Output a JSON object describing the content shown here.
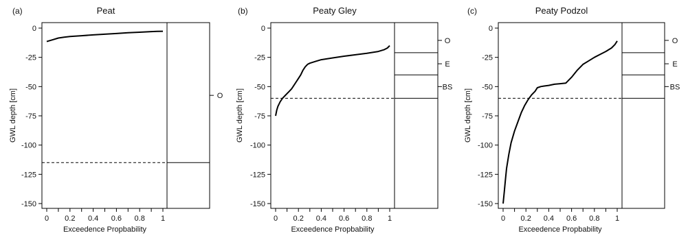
{
  "figure": {
    "panels": [
      {
        "letter": "(a)",
        "title": "Peat",
        "xlabel": "Exceedence Propbability",
        "ylabel": "GWL depth [cm]",
        "horizon_labels": [
          "O"
        ]
      },
      {
        "letter": "(b)",
        "title": "Peaty Gley",
        "xlabel": "Exceedence Propbability",
        "ylabel": "GWL depth [cm]",
        "horizon_labels": [
          "O",
          "E",
          "BS"
        ]
      },
      {
        "letter": "(c)",
        "title": "Peaty Podzol",
        "xlabel": "Exceedence Propbability",
        "ylabel": "GWL depth [cm]",
        "horizon_labels": [
          "O",
          "E",
          "BS"
        ]
      }
    ]
  },
  "chart_data": [
    {
      "type": "line",
      "title": "Peat",
      "xlabel": "Exceedence Propbability",
      "ylabel": "GWL depth [cm]",
      "xlim": [
        0,
        1
      ],
      "ylim": [
        -150,
        0
      ],
      "xticks": [
        "0",
        "0.2",
        "0.4",
        "0.6",
        "0.8",
        "1"
      ],
      "xticks_minor": [
        "0.1",
        "0.3",
        "0.5",
        "0.7",
        "0.9"
      ],
      "yticks": [
        "0",
        "-25",
        "-50",
        "-75",
        "-100",
        "-125",
        "-150"
      ],
      "series": [
        {
          "x": [
            0,
            0.05,
            0.1,
            0.15,
            0.2,
            0.3,
            0.4,
            0.5,
            0.6,
            0.7,
            0.8,
            0.9,
            0.95,
            1
          ],
          "y": [
            -11.5,
            -10,
            -8.5,
            -7.8,
            -7.2,
            -6.5,
            -5.8,
            -5.2,
            -4.6,
            -4,
            -3.5,
            -3,
            -2.8,
            -2.7
          ]
        }
      ],
      "reference_line_depth": -115,
      "horizons": [
        {
          "label": "O",
          "top": 0,
          "bottom": -115
        }
      ]
    },
    {
      "type": "line",
      "title": "Peaty Gley",
      "xlabel": "Exceedence Propbability",
      "ylabel": "GWL depth [cm]",
      "xlim": [
        0,
        1
      ],
      "ylim": [
        -150,
        0
      ],
      "xticks": [
        "0",
        "0.2",
        "0.4",
        "0.6",
        "0.8",
        "1"
      ],
      "xticks_minor": [
        "0.1",
        "0.3",
        "0.5",
        "0.7",
        "0.9"
      ],
      "yticks": [
        "0",
        "-25",
        "-50",
        "-75",
        "-100",
        "-125",
        "-150"
      ],
      "series": [
        {
          "x": [
            0,
            0.01,
            0.02,
            0.04,
            0.06,
            0.08,
            0.1,
            0.12,
            0.14,
            0.16,
            0.18,
            0.2,
            0.22,
            0.24,
            0.26,
            0.28,
            0.3,
            0.35,
            0.4,
            0.5,
            0.6,
            0.7,
            0.8,
            0.9,
            0.95,
            0.98,
            1
          ],
          "y": [
            -75,
            -70,
            -67,
            -63,
            -60,
            -58,
            -56,
            -54,
            -52,
            -49,
            -46,
            -43,
            -40,
            -36,
            -33,
            -31,
            -30,
            -28.5,
            -27,
            -25.5,
            -24,
            -22.8,
            -21.5,
            -20,
            -18.5,
            -17,
            -15
          ]
        }
      ],
      "reference_line_depth": -60,
      "horizons": [
        {
          "label": "O",
          "top": 0,
          "bottom": -21
        },
        {
          "label": "E",
          "top": -21,
          "bottom": -40
        },
        {
          "label": "BS",
          "top": -40,
          "bottom": -60
        }
      ]
    },
    {
      "type": "line",
      "title": "Peaty Podzol",
      "xlabel": "Exceedence Propbability",
      "ylabel": "GWL depth [cm]",
      "xlim": [
        0,
        1
      ],
      "ylim": [
        -150,
        0
      ],
      "xticks": [
        "0",
        "0.2",
        "0.4",
        "0.6",
        "0.8",
        "1"
      ],
      "xticks_minor": [
        "0.1",
        "0.3",
        "0.5",
        "0.7",
        "0.9"
      ],
      "yticks": [
        "0",
        "-25",
        "-50",
        "-75",
        "-100",
        "-125",
        "-150"
      ],
      "series": [
        {
          "x": [
            0,
            0.01,
            0.02,
            0.03,
            0.05,
            0.07,
            0.1,
            0.13,
            0.16,
            0.19,
            0.22,
            0.25,
            0.28,
            0.3,
            0.33,
            0.36,
            0.4,
            0.45,
            0.5,
            0.55,
            0.6,
            0.65,
            0.7,
            0.75,
            0.8,
            0.85,
            0.9,
            0.95,
            0.98,
            1
          ],
          "y": [
            -150,
            -140,
            -130,
            -120,
            -108,
            -98,
            -88,
            -80,
            -72,
            -66,
            -61,
            -57,
            -54,
            -51,
            -50,
            -49.5,
            -49,
            -48,
            -47.5,
            -47,
            -42,
            -36,
            -31,
            -28,
            -25,
            -22.5,
            -20,
            -17,
            -14,
            -11
          ]
        }
      ],
      "reference_line_depth": -60,
      "horizons": [
        {
          "label": "O",
          "top": 0,
          "bottom": -21
        },
        {
          "label": "E",
          "top": -21,
          "bottom": -40
        },
        {
          "label": "BS",
          "top": -40,
          "bottom": -60
        }
      ]
    }
  ]
}
